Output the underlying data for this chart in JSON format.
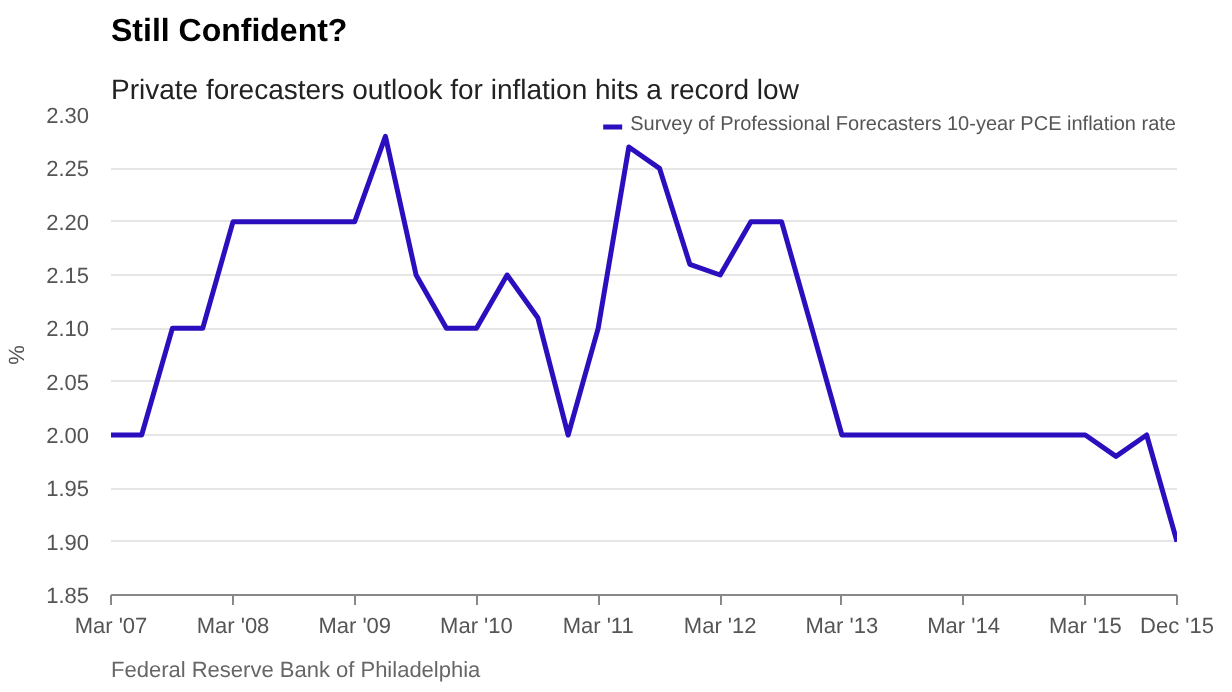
{
  "chart_data": {
    "type": "line",
    "title": "Still Confident?",
    "subtitle": "Private forecasters outlook for inflation hits a record low",
    "ylabel": "%",
    "x": [
      "2007-03",
      "2007-06",
      "2007-09",
      "2007-12",
      "2008-03",
      "2008-06",
      "2008-09",
      "2008-12",
      "2009-03",
      "2009-06",
      "2009-09",
      "2009-12",
      "2010-03",
      "2010-06",
      "2010-09",
      "2010-12",
      "2011-03",
      "2011-06",
      "2011-09",
      "2011-12",
      "2012-03",
      "2012-06",
      "2012-09",
      "2012-12",
      "2013-03",
      "2013-06",
      "2013-09",
      "2013-12",
      "2014-03",
      "2014-06",
      "2014-09",
      "2014-12",
      "2015-03",
      "2015-06",
      "2015-09",
      "2015-12"
    ],
    "series": [
      {
        "name": "Survey of Professional Forecasters 10-year PCE inflation rate",
        "color": "#2b0fbf",
        "values": [
          2.0,
          2.0,
          2.1,
          2.1,
          2.2,
          2.2,
          2.2,
          2.2,
          2.2,
          2.28,
          2.15,
          2.1,
          2.1,
          2.15,
          2.11,
          2.0,
          2.1,
          2.27,
          2.25,
          2.16,
          2.15,
          2.2,
          2.2,
          2.1,
          2.0,
          2.0,
          2.0,
          2.0,
          2.0,
          2.0,
          2.0,
          2.0,
          2.0,
          1.98,
          2.0,
          1.9
        ]
      }
    ],
    "xlim": [
      "2007-03",
      "2015-12"
    ],
    "xticks": [
      {
        "value": "2007-03",
        "label": "Mar '07"
      },
      {
        "value": "2008-03",
        "label": "Mar '08"
      },
      {
        "value": "2009-03",
        "label": "Mar '09"
      },
      {
        "value": "2010-03",
        "label": "Mar '10"
      },
      {
        "value": "2011-03",
        "label": "Mar '11"
      },
      {
        "value": "2012-03",
        "label": "Mar '12"
      },
      {
        "value": "2013-03",
        "label": "Mar '13"
      },
      {
        "value": "2014-03",
        "label": "Mar '14"
      },
      {
        "value": "2015-03",
        "label": "Mar '15"
      },
      {
        "value": "2015-12",
        "label": "Dec '15"
      }
    ],
    "ylim": [
      1.85,
      2.3
    ],
    "yticks": [
      {
        "value": 1.85,
        "label": "1.85"
      },
      {
        "value": 1.9,
        "label": "1.90"
      },
      {
        "value": 1.95,
        "label": "1.95"
      },
      {
        "value": 2.0,
        "label": "2.00"
      },
      {
        "value": 2.05,
        "label": "2.05"
      },
      {
        "value": 2.1,
        "label": "2.10"
      },
      {
        "value": 2.15,
        "label": "2.15"
      },
      {
        "value": 2.2,
        "label": "2.20"
      },
      {
        "value": 2.25,
        "label": "2.25"
      },
      {
        "value": 2.3,
        "label": "2.30"
      }
    ],
    "grid": "y",
    "legend": "top right",
    "marker": "none",
    "line_style": "solid",
    "annotations": [
      "Federal Reserve Bank of Philadelphia"
    ]
  }
}
